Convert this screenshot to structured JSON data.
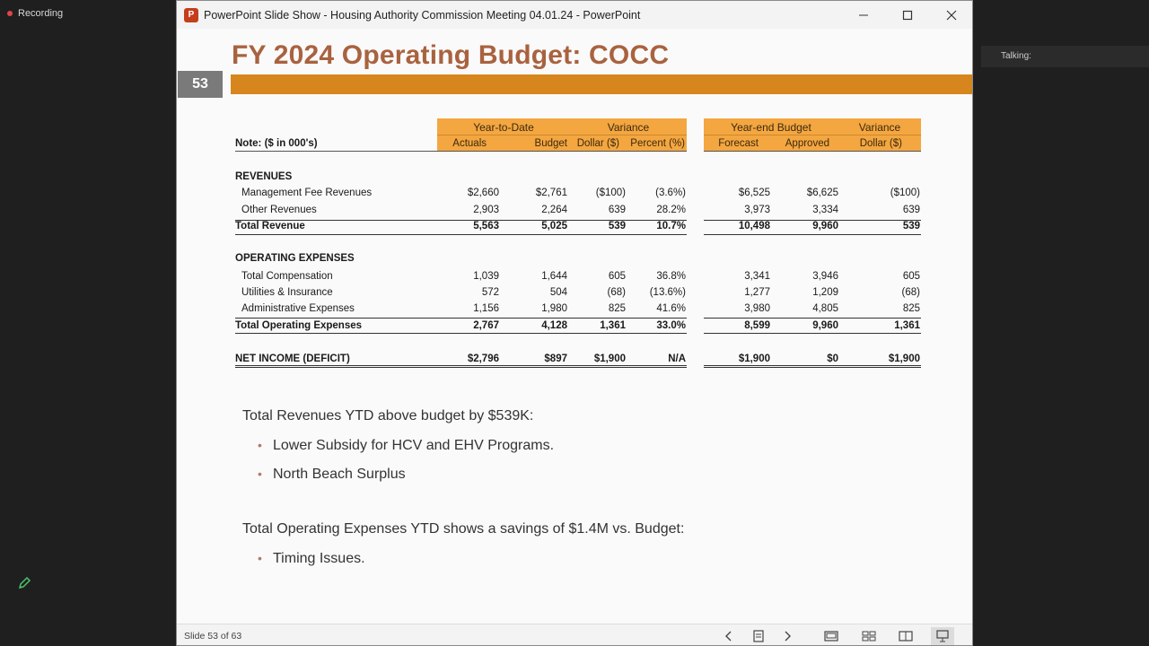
{
  "meeting": {
    "recording_label": "Recording",
    "talking_label": "Talking:"
  },
  "window": {
    "title": "PowerPoint Slide Show  -  Housing Authority Commission Meeting 04.01.24 - PowerPoint",
    "icon_letter": "P"
  },
  "slide": {
    "title": "FY 2024 Operating Budget: COCC",
    "number": "53",
    "note": "Note: ($ in 000's)",
    "headers": {
      "ytd": "Year-to-Date",
      "variance1": "Variance",
      "yearend": "Year-end Budget",
      "variance2": "Variance",
      "cols": [
        "Actuals",
        "Budget",
        "Dollar ($)",
        "Percent (%)",
        "Forecast",
        "Approved",
        "Dollar ($)"
      ]
    },
    "sections": {
      "revenues": "REVENUES",
      "opex": "OPERATING EXPENSES"
    },
    "rows": [
      {
        "label": "Management Fee Revenues",
        "values": [
          "$2,660",
          "$2,761",
          "($100)",
          "(3.6%)",
          "$6,525",
          "$6,625",
          "($100)"
        ]
      },
      {
        "label": "Other Revenues",
        "values": [
          "2,903",
          "2,264",
          "639",
          "28.2%",
          "3,973",
          "3,334",
          "639"
        ]
      },
      {
        "label": "Total Revenue",
        "values": [
          "5,563",
          "5,025",
          "539",
          "10.7%",
          "10,498",
          "9,960",
          "539"
        ]
      },
      {
        "label": "Total Compensation",
        "values": [
          "1,039",
          "1,644",
          "605",
          "36.8%",
          "3,341",
          "3,946",
          "605"
        ]
      },
      {
        "label": "Utilities & Insurance",
        "values": [
          "572",
          "504",
          "(68)",
          "(13.6%)",
          "1,277",
          "1,209",
          "(68)"
        ]
      },
      {
        "label": "Administrative Expenses",
        "values": [
          "1,156",
          "1,980",
          "825",
          "41.6%",
          "3,980",
          "4,805",
          "825"
        ]
      },
      {
        "label": "Total Operating Expenses",
        "values": [
          "2,767",
          "4,128",
          "1,361",
          "33.0%",
          "8,599",
          "9,960",
          "1,361"
        ]
      },
      {
        "label": "NET INCOME (DEFICIT)",
        "values": [
          "$2,796",
          "$897",
          "$1,900",
          "N/A",
          "$1,900",
          "$0",
          "$1,900"
        ]
      }
    ],
    "text1": "Total Revenues YTD above budget by $539K:",
    "bullets1": [
      "Lower Subsidy for HCV and EHV Programs.",
      "North Beach Surplus"
    ],
    "text2": "Total Operating Expenses YTD shows a savings of $1.4M vs. Budget:",
    "bullets2": [
      "Timing Issues."
    ]
  },
  "statusbar": {
    "slide_count": "Slide 53 of 63"
  },
  "colors": {
    "title": "#a9623f",
    "bar": "#d6861c",
    "header_fill": "#f4a640",
    "number_box": "#7a7a7a"
  }
}
